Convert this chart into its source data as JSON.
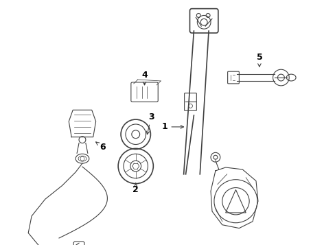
{
  "background_color": "#ffffff",
  "line_color": "#404040",
  "text_color": "#000000",
  "label_fontsize": 9,
  "fig_width": 4.89,
  "fig_height": 3.6,
  "dpi": 100
}
